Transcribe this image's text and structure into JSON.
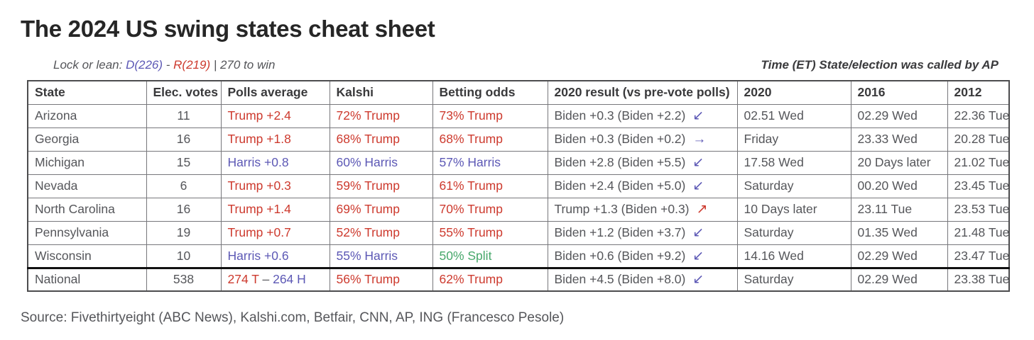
{
  "page": {
    "title": "The 2024 US swing states cheat sheet",
    "lock_line": {
      "prefix": "Lock or lean: ",
      "dem": "D(226)",
      "separator": " - ",
      "rep": "R(219)",
      "suffix": " | 270 to win"
    },
    "time_note": "Time (ET) State/election was called by AP",
    "source": "Source: Fivethirtyeight (ABC News), Kalshi.com, Betfair, CNN, AP, ING (Francesco Pesole)"
  },
  "colors": {
    "red": "#cd3a2e",
    "blue": "#5c58b5",
    "green": "#47a86b",
    "gray": "#55565a"
  },
  "chart_data": {
    "type": "table",
    "title": "The 2024 US swing states cheat sheet",
    "columns": [
      "State",
      "Elec. votes",
      "Polls average",
      "Kalshi",
      "Betting odds",
      "2020 result (vs pre-vote polls)",
      "2020",
      "2016",
      "2012"
    ],
    "rows": [
      {
        "state": "Arizona",
        "votes": "11",
        "polls": [
          {
            "text": "Trump +2.4",
            "color": "red"
          }
        ],
        "kalshi": {
          "text": "72% Trump",
          "color": "red"
        },
        "betting": {
          "text": "73% Trump",
          "color": "red"
        },
        "result2020": {
          "text": "Biden +0.3 (Biden +2.2)",
          "arrow": "↙",
          "arrow_color": "blue"
        },
        "called2020": "02.51 Wed",
        "called2016": "02.29 Wed",
        "called2012": "22.36 Tue",
        "total": false
      },
      {
        "state": "Georgia",
        "votes": "16",
        "polls": [
          {
            "text": "Trump +1.8",
            "color": "red"
          }
        ],
        "kalshi": {
          "text": "68% Trump",
          "color": "red"
        },
        "betting": {
          "text": "68% Trump",
          "color": "red"
        },
        "result2020": {
          "text": "Biden +0.3 (Biden +0.2)",
          "arrow": "→",
          "arrow_color": "blue"
        },
        "called2020": "Friday",
        "called2016": "23.33 Wed",
        "called2012": "20.28 Tue",
        "total": false
      },
      {
        "state": "Michigan",
        "votes": "15",
        "polls": [
          {
            "text": "Harris +0.8",
            "color": "blue"
          }
        ],
        "kalshi": {
          "text": "60% Harris",
          "color": "blue"
        },
        "betting": {
          "text": "57% Harris",
          "color": "blue"
        },
        "result2020": {
          "text": "Biden +2.8 (Biden +5.5)",
          "arrow": "↙",
          "arrow_color": "blue"
        },
        "called2020": "17.58 Wed",
        "called2016": "20 Days later",
        "called2012": "21.02 Tue",
        "total": false
      },
      {
        "state": "Nevada",
        "votes": "6",
        "polls": [
          {
            "text": "Trump +0.3",
            "color": "red"
          }
        ],
        "kalshi": {
          "text": "59% Trump",
          "color": "red"
        },
        "betting": {
          "text": "61% Trump",
          "color": "red"
        },
        "result2020": {
          "text": "Biden +2.4 (Biden +5.0)",
          "arrow": "↙",
          "arrow_color": "blue"
        },
        "called2020": "Saturday",
        "called2016": "00.20 Wed",
        "called2012": "23.45 Tue",
        "total": false
      },
      {
        "state": "North Carolina",
        "votes": "16",
        "polls": [
          {
            "text": "Trump +1.4",
            "color": "red"
          }
        ],
        "kalshi": {
          "text": "69% Trump",
          "color": "red"
        },
        "betting": {
          "text": "70% Trump",
          "color": "red"
        },
        "result2020": {
          "text": "Trump +1.3 (Biden +0.3)",
          "arrow": "↗",
          "arrow_color": "red"
        },
        "called2020": "10 Days later",
        "called2016": "23.11 Tue",
        "called2012": "23.53 Tue",
        "total": false
      },
      {
        "state": "Pennsylvania",
        "votes": "19",
        "polls": [
          {
            "text": "Trump +0.7",
            "color": "red"
          }
        ],
        "kalshi": {
          "text": "52% Trump",
          "color": "red"
        },
        "betting": {
          "text": "55% Trump",
          "color": "red"
        },
        "result2020": {
          "text": "Biden +1.2 (Biden +3.7)",
          "arrow": "↙",
          "arrow_color": "blue"
        },
        "called2020": "Saturday",
        "called2016": "01.35 Wed",
        "called2012": "21.48 Tue",
        "total": false
      },
      {
        "state": "Wisconsin",
        "votes": "10",
        "polls": [
          {
            "text": "Harris +0.6",
            "color": "blue"
          }
        ],
        "kalshi": {
          "text": "55% Harris",
          "color": "blue"
        },
        "betting": {
          "text": "50% Split",
          "color": "green"
        },
        "result2020": {
          "text": "Biden +0.6 (Biden +9.2)",
          "arrow": "↙",
          "arrow_color": "blue"
        },
        "called2020": "14.16 Wed",
        "called2016": "02.29 Wed",
        "called2012": "23.47 Tue",
        "total": false
      },
      {
        "state": "National",
        "votes": "538",
        "polls": [
          {
            "text": "274 T",
            "color": "red"
          },
          {
            "text": " – ",
            "color": "gray"
          },
          {
            "text": "264 H",
            "color": "blue"
          }
        ],
        "kalshi": {
          "text": "56% Trump",
          "color": "red"
        },
        "betting": {
          "text": "62% Trump",
          "color": "red"
        },
        "result2020": {
          "text": "Biden +4.5 (Biden +8.0)",
          "arrow": "↙",
          "arrow_color": "blue"
        },
        "called2020": "Saturday",
        "called2016": "02.29 Wed",
        "called2012": "23.38 Tue",
        "total": true
      }
    ]
  }
}
